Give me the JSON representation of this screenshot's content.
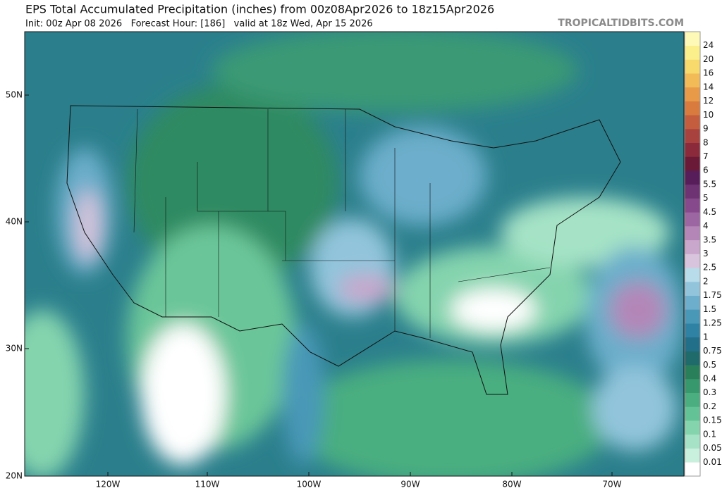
{
  "header": {
    "title": "EPS Total Accumulated Precipitation (inches) from 00z08Apr2026 to 18z15Apr2026",
    "subtitle": "Init: 00z Apr 08 2026   Forecast Hour: [186]   valid at 18z Wed, Apr 15 2026",
    "watermark": "TROPICALTIDBITS.COM"
  },
  "map": {
    "lat_labels": [
      "50N",
      "40N",
      "30N",
      "20N"
    ],
    "lon_labels": [
      "120W",
      "110W",
      "100W",
      "90W",
      "80W",
      "70W"
    ]
  },
  "colorbar": {
    "labels": [
      "0.01",
      "0.05",
      "0.1",
      "0.15",
      "0.2",
      "0.3",
      "0.4",
      "0.5",
      "0.75",
      "1",
      "1.25",
      "1.5",
      "1.75",
      "2",
      "2.5",
      "3",
      "3.5",
      "4",
      "4.5",
      "5",
      "5.5",
      "6",
      "7",
      "8",
      "9",
      "10",
      "12",
      "14",
      "16",
      "20",
      "24"
    ],
    "colors": [
      "#ffffff",
      "#c9f0dc",
      "#a6e3c6",
      "#84d4ae",
      "#64c396",
      "#4aae80",
      "#38986d",
      "#2a7f5b",
      "#1f6b6c",
      "#226f8a",
      "#2f82a3",
      "#4a98b8",
      "#6caecb",
      "#92c5dc",
      "#b8dcea",
      "#d8c4dc",
      "#c9a6cb",
      "#b486b8",
      "#9c66a2",
      "#86498b",
      "#6d3373",
      "#571d5b",
      "#6a1a36",
      "#8a2a3a",
      "#a8423e",
      "#c45c3e",
      "#d97a3e",
      "#e89a48",
      "#f2bb58",
      "#f8d96c",
      "#fbef8c",
      "#fff9b8"
    ]
  }
}
